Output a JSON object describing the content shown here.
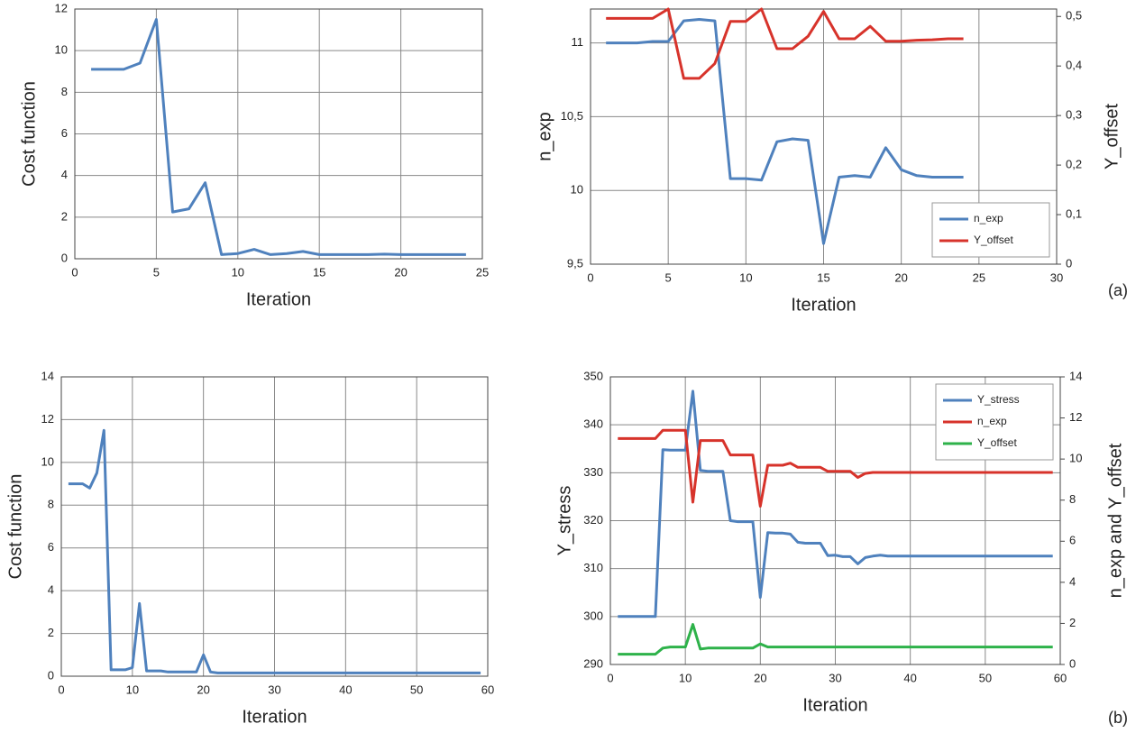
{
  "chart_data": [
    {
      "type": "line",
      "xlabel": "Iteration",
      "ylabel": "Cost function",
      "grid": true,
      "x": [
        1,
        2,
        3,
        4,
        5,
        6,
        7,
        8,
        9,
        10,
        11,
        12,
        13,
        14,
        15,
        16,
        17,
        18,
        19,
        20,
        21,
        22,
        23,
        24
      ],
      "values": [
        9.1,
        9.1,
        9.1,
        9.4,
        11.5,
        2.25,
        2.4,
        3.65,
        0.2,
        0.25,
        0.45,
        0.2,
        0.25,
        0.35,
        0.2,
        0.2,
        0.2,
        0.2,
        0.22,
        0.2,
        0.2,
        0.2,
        0.2,
        0.2
      ],
      "color": "#4f81bd",
      "xlim": [
        0,
        25
      ],
      "xticks": [
        0,
        5,
        10,
        15,
        20,
        25
      ],
      "ylim": [
        0,
        12
      ],
      "yticks": [
        0,
        2,
        4,
        6,
        8,
        10,
        12
      ]
    },
    {
      "type": "line",
      "xlabel": "Iteration",
      "ylabel": "n_exp",
      "y2label": "Y_offset",
      "grid": true,
      "annotation": "(a)",
      "legend": "lower right",
      "x": [
        1,
        2,
        3,
        4,
        5,
        6,
        7,
        8,
        9,
        10,
        11,
        12,
        13,
        14,
        15,
        16,
        17,
        18,
        19,
        20,
        21,
        22,
        23,
        24
      ],
      "series": [
        {
          "name": "n_exp",
          "color": "#4f81bd",
          "values": [
            11.0,
            11.0,
            11.0,
            11.01,
            11.01,
            11.15,
            11.16,
            11.15,
            10.08,
            10.08,
            10.07,
            10.33,
            10.35,
            10.34,
            9.64,
            10.09,
            10.1,
            10.09,
            10.29,
            10.14,
            10.1,
            10.09,
            10.09,
            10.09
          ]
        },
        {
          "name": "Y_offset",
          "color": "#d7332b",
          "axis": "y2",
          "values": [
            0.496,
            0.496,
            0.496,
            0.496,
            0.515,
            0.375,
            0.375,
            0.405,
            0.49,
            0.49,
            0.515,
            0.435,
            0.435,
            0.46,
            0.51,
            0.455,
            0.455,
            0.48,
            0.45,
            0.45,
            0.452,
            0.453,
            0.455,
            0.455
          ]
        }
      ],
      "xlim": [
        0,
        30
      ],
      "xticks": [
        0,
        5,
        10,
        15,
        20,
        25,
        30
      ],
      "ylim": [
        9.5,
        11.23
      ],
      "yticks": [
        {
          "value": 9.5,
          "label": "9,5"
        },
        10,
        {
          "value": 10.5,
          "label": "10,5"
        },
        11
      ],
      "y2lim": [
        0,
        0.515
      ],
      "y2ticks": [
        0,
        {
          "value": 0.1,
          "label": "0,1"
        },
        {
          "value": 0.2,
          "label": "0,2"
        },
        {
          "value": 0.3,
          "label": "0,3"
        },
        {
          "value": 0.4,
          "label": "0,4"
        },
        {
          "value": 0.5,
          "label": "0,5"
        }
      ]
    },
    {
      "type": "line",
      "xlabel": "Iteration",
      "ylabel": "Cost function",
      "grid": true,
      "x": [
        1,
        2,
        3,
        4,
        5,
        6,
        7,
        8,
        9,
        10,
        11,
        12,
        13,
        14,
        15,
        16,
        17,
        18,
        19,
        20,
        21,
        22,
        23,
        24,
        25,
        26,
        27,
        28,
        29,
        30,
        31,
        32,
        33,
        34,
        35,
        36,
        37,
        38,
        39,
        40,
        41,
        42,
        43,
        44,
        45,
        46,
        47,
        48,
        49,
        50,
        51,
        52,
        53,
        54,
        55,
        56,
        57,
        58,
        59
      ],
      "values": [
        9.0,
        9.0,
        9.0,
        8.8,
        9.5,
        11.5,
        0.3,
        0.3,
        0.3,
        0.4,
        3.4,
        0.25,
        0.25,
        0.25,
        0.2,
        0.2,
        0.2,
        0.2,
        0.2,
        1.0,
        0.2,
        0.15,
        0.15,
        0.15,
        0.15,
        0.15,
        0.15,
        0.15,
        0.15,
        0.15,
        0.15,
        0.15,
        0.15,
        0.15,
        0.15,
        0.15,
        0.15,
        0.15,
        0.15,
        0.15,
        0.15,
        0.15,
        0.15,
        0.15,
        0.15,
        0.15,
        0.15,
        0.15,
        0.15,
        0.15,
        0.15,
        0.15,
        0.15,
        0.15,
        0.15,
        0.15,
        0.15,
        0.15,
        0.15
      ],
      "color": "#4f81bd",
      "xlim": [
        0,
        60
      ],
      "xticks": [
        0,
        10,
        20,
        30,
        40,
        50,
        60
      ],
      "ylim": [
        0,
        14
      ],
      "yticks": [
        0,
        2,
        4,
        6,
        8,
        10,
        12,
        14
      ]
    },
    {
      "type": "line",
      "xlabel": "Iteration",
      "ylabel": "Y_stress",
      "y2label": "n_exp and Y_offset",
      "grid": true,
      "annotation": "(b)",
      "legend": "upper right",
      "x": [
        1,
        2,
        3,
        4,
        5,
        6,
        7,
        8,
        9,
        10,
        11,
        12,
        13,
        14,
        15,
        16,
        17,
        18,
        19,
        20,
        21,
        22,
        23,
        24,
        25,
        26,
        27,
        28,
        29,
        30,
        31,
        32,
        33,
        34,
        35,
        36,
        37,
        38,
        39,
        40,
        41,
        42,
        43,
        44,
        45,
        46,
        47,
        48,
        49,
        50,
        51,
        52,
        53,
        54,
        55,
        56,
        57,
        58,
        59
      ],
      "series": [
        {
          "name": "Y_stress",
          "color": "#4f81bd",
          "values": [
            300,
            300,
            300,
            300,
            300,
            300,
            334.8,
            334.7,
            334.7,
            334.7,
            347,
            330.5,
            330.3,
            330.3,
            330.3,
            320,
            319.8,
            319.8,
            319.8,
            304,
            317.5,
            317.4,
            317.4,
            317.2,
            315.5,
            315.3,
            315.3,
            315.3,
            312.7,
            312.8,
            312.5,
            312.5,
            311,
            312.3,
            312.6,
            312.8,
            312.6,
            312.6,
            312.6,
            312.6,
            312.6,
            312.6,
            312.6,
            312.6,
            312.6,
            312.6,
            312.6,
            312.6,
            312.6,
            312.6,
            312.6,
            312.6,
            312.6,
            312.6,
            312.6,
            312.6,
            312.6,
            312.6,
            312.6
          ]
        },
        {
          "name": "n_exp",
          "color": "#d7332b",
          "axis": "y2",
          "values": [
            11.0,
            11.0,
            11.0,
            11.0,
            11.0,
            11.0,
            11.4,
            11.4,
            11.4,
            11.4,
            7.9,
            10.9,
            10.9,
            10.9,
            10.9,
            10.2,
            10.2,
            10.2,
            10.2,
            7.7,
            9.7,
            9.7,
            9.7,
            9.8,
            9.6,
            9.6,
            9.6,
            9.6,
            9.4,
            9.4,
            9.4,
            9.4,
            9.1,
            9.3,
            9.35,
            9.35,
            9.35,
            9.35,
            9.35,
            9.35,
            9.35,
            9.35,
            9.35,
            9.35,
            9.35,
            9.35,
            9.35,
            9.35,
            9.35,
            9.35,
            9.35,
            9.35,
            9.35,
            9.35,
            9.35,
            9.35,
            9.35,
            9.35,
            9.35
          ]
        },
        {
          "name": "Y_offset",
          "color": "#2eb24a",
          "axis": "y2",
          "values": [
            0.5,
            0.5,
            0.5,
            0.5,
            0.5,
            0.5,
            0.8,
            0.85,
            0.85,
            0.85,
            1.95,
            0.75,
            0.8,
            0.8,
            0.8,
            0.8,
            0.8,
            0.8,
            0.8,
            1.0,
            0.85,
            0.85,
            0.85,
            0.85,
            0.85,
            0.85,
            0.85,
            0.85,
            0.85,
            0.85,
            0.85,
            0.85,
            0.85,
            0.85,
            0.85,
            0.85,
            0.85,
            0.85,
            0.85,
            0.85,
            0.85,
            0.85,
            0.85,
            0.85,
            0.85,
            0.85,
            0.85,
            0.85,
            0.85,
            0.85,
            0.85,
            0.85,
            0.85,
            0.85,
            0.85,
            0.85,
            0.85,
            0.85,
            0.85
          ]
        }
      ],
      "xlim": [
        0,
        60
      ],
      "xticks": [
        0,
        10,
        20,
        30,
        40,
        50,
        60
      ],
      "ylim": [
        290,
        350
      ],
      "yticks": [
        290,
        300,
        310,
        320,
        330,
        340,
        350
      ],
      "y2lim": [
        0,
        14
      ],
      "y2ticks": [
        0,
        2,
        4,
        6,
        8,
        10,
        12,
        14
      ]
    }
  ]
}
